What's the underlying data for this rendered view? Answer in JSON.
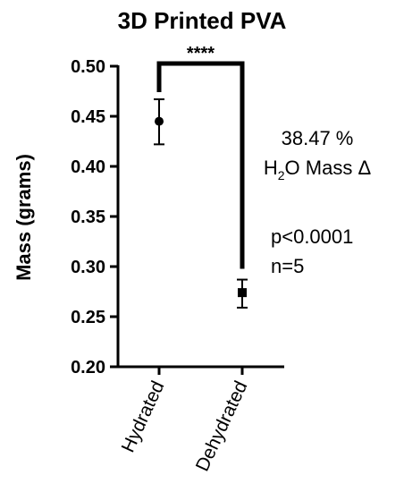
{
  "chart_data": {
    "type": "scatter",
    "title": "3D Printed PVA",
    "ylabel": "Mass (grams)",
    "xlabel": "",
    "ylim": [
      0.2,
      0.5
    ],
    "yticks": [
      "0.50",
      "0.45",
      "0.40",
      "0.35",
      "0.30",
      "0.25",
      "0.20"
    ],
    "categories": [
      "Hydrated",
      "Dehydrated"
    ],
    "points": [
      {
        "category": "Hydrated",
        "mean": 0.445,
        "err_low": 0.422,
        "err_high": 0.467,
        "marker": "circle"
      },
      {
        "category": "Dehydrated",
        "mean": 0.274,
        "err_low": 0.259,
        "err_high": 0.287,
        "marker": "square"
      }
    ],
    "significance": "****",
    "annotations": {
      "mass_change_pct": "38.47 %",
      "mass_change_label": {
        "h": "H",
        "sub": "2",
        "rest": "O Mass Δ"
      },
      "p_value": "p<0.0001",
      "n": "n=5"
    },
    "grid": false
  }
}
